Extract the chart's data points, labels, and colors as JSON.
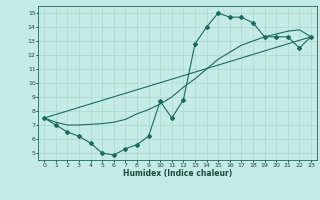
{
  "title": "",
  "xlabel": "Humidex (Indice chaleur)",
  "xlim": [
    -0.5,
    23.5
  ],
  "ylim": [
    4.5,
    15.5
  ],
  "xticks": [
    0,
    1,
    2,
    3,
    4,
    5,
    6,
    7,
    8,
    9,
    10,
    11,
    12,
    13,
    14,
    15,
    16,
    17,
    18,
    19,
    20,
    21,
    22,
    23
  ],
  "yticks": [
    5,
    6,
    7,
    8,
    9,
    10,
    11,
    12,
    13,
    14,
    15
  ],
  "bg_color": "#c5ebe7",
  "line_color": "#1a6b60",
  "grid_color": "#aed8d3",
  "line1_x": [
    0,
    1,
    2,
    3,
    4,
    5,
    6,
    7,
    8,
    9,
    10,
    11,
    12,
    13,
    14,
    15,
    16,
    17,
    18,
    19,
    20,
    21,
    22,
    23
  ],
  "line1_y": [
    7.5,
    7.0,
    6.5,
    6.2,
    5.7,
    5.0,
    4.85,
    5.3,
    5.6,
    6.2,
    8.7,
    7.5,
    8.8,
    12.8,
    14.0,
    15.0,
    14.7,
    14.7,
    14.3,
    13.3,
    13.3,
    13.3,
    12.5,
    13.3
  ],
  "line2_x": [
    0,
    1,
    2,
    3,
    4,
    5,
    6,
    7,
    8,
    9,
    10,
    11,
    12,
    13,
    14,
    15,
    16,
    17,
    18,
    19,
    20,
    21,
    22,
    23
  ],
  "line2_y": [
    7.5,
    7.2,
    7.0,
    7.0,
    7.05,
    7.1,
    7.2,
    7.4,
    7.8,
    8.1,
    8.5,
    9.0,
    9.7,
    10.3,
    11.0,
    11.7,
    12.2,
    12.7,
    13.0,
    13.3,
    13.5,
    13.7,
    13.8,
    13.3
  ],
  "line3_x": [
    0,
    23
  ],
  "line3_y": [
    7.5,
    13.3
  ]
}
